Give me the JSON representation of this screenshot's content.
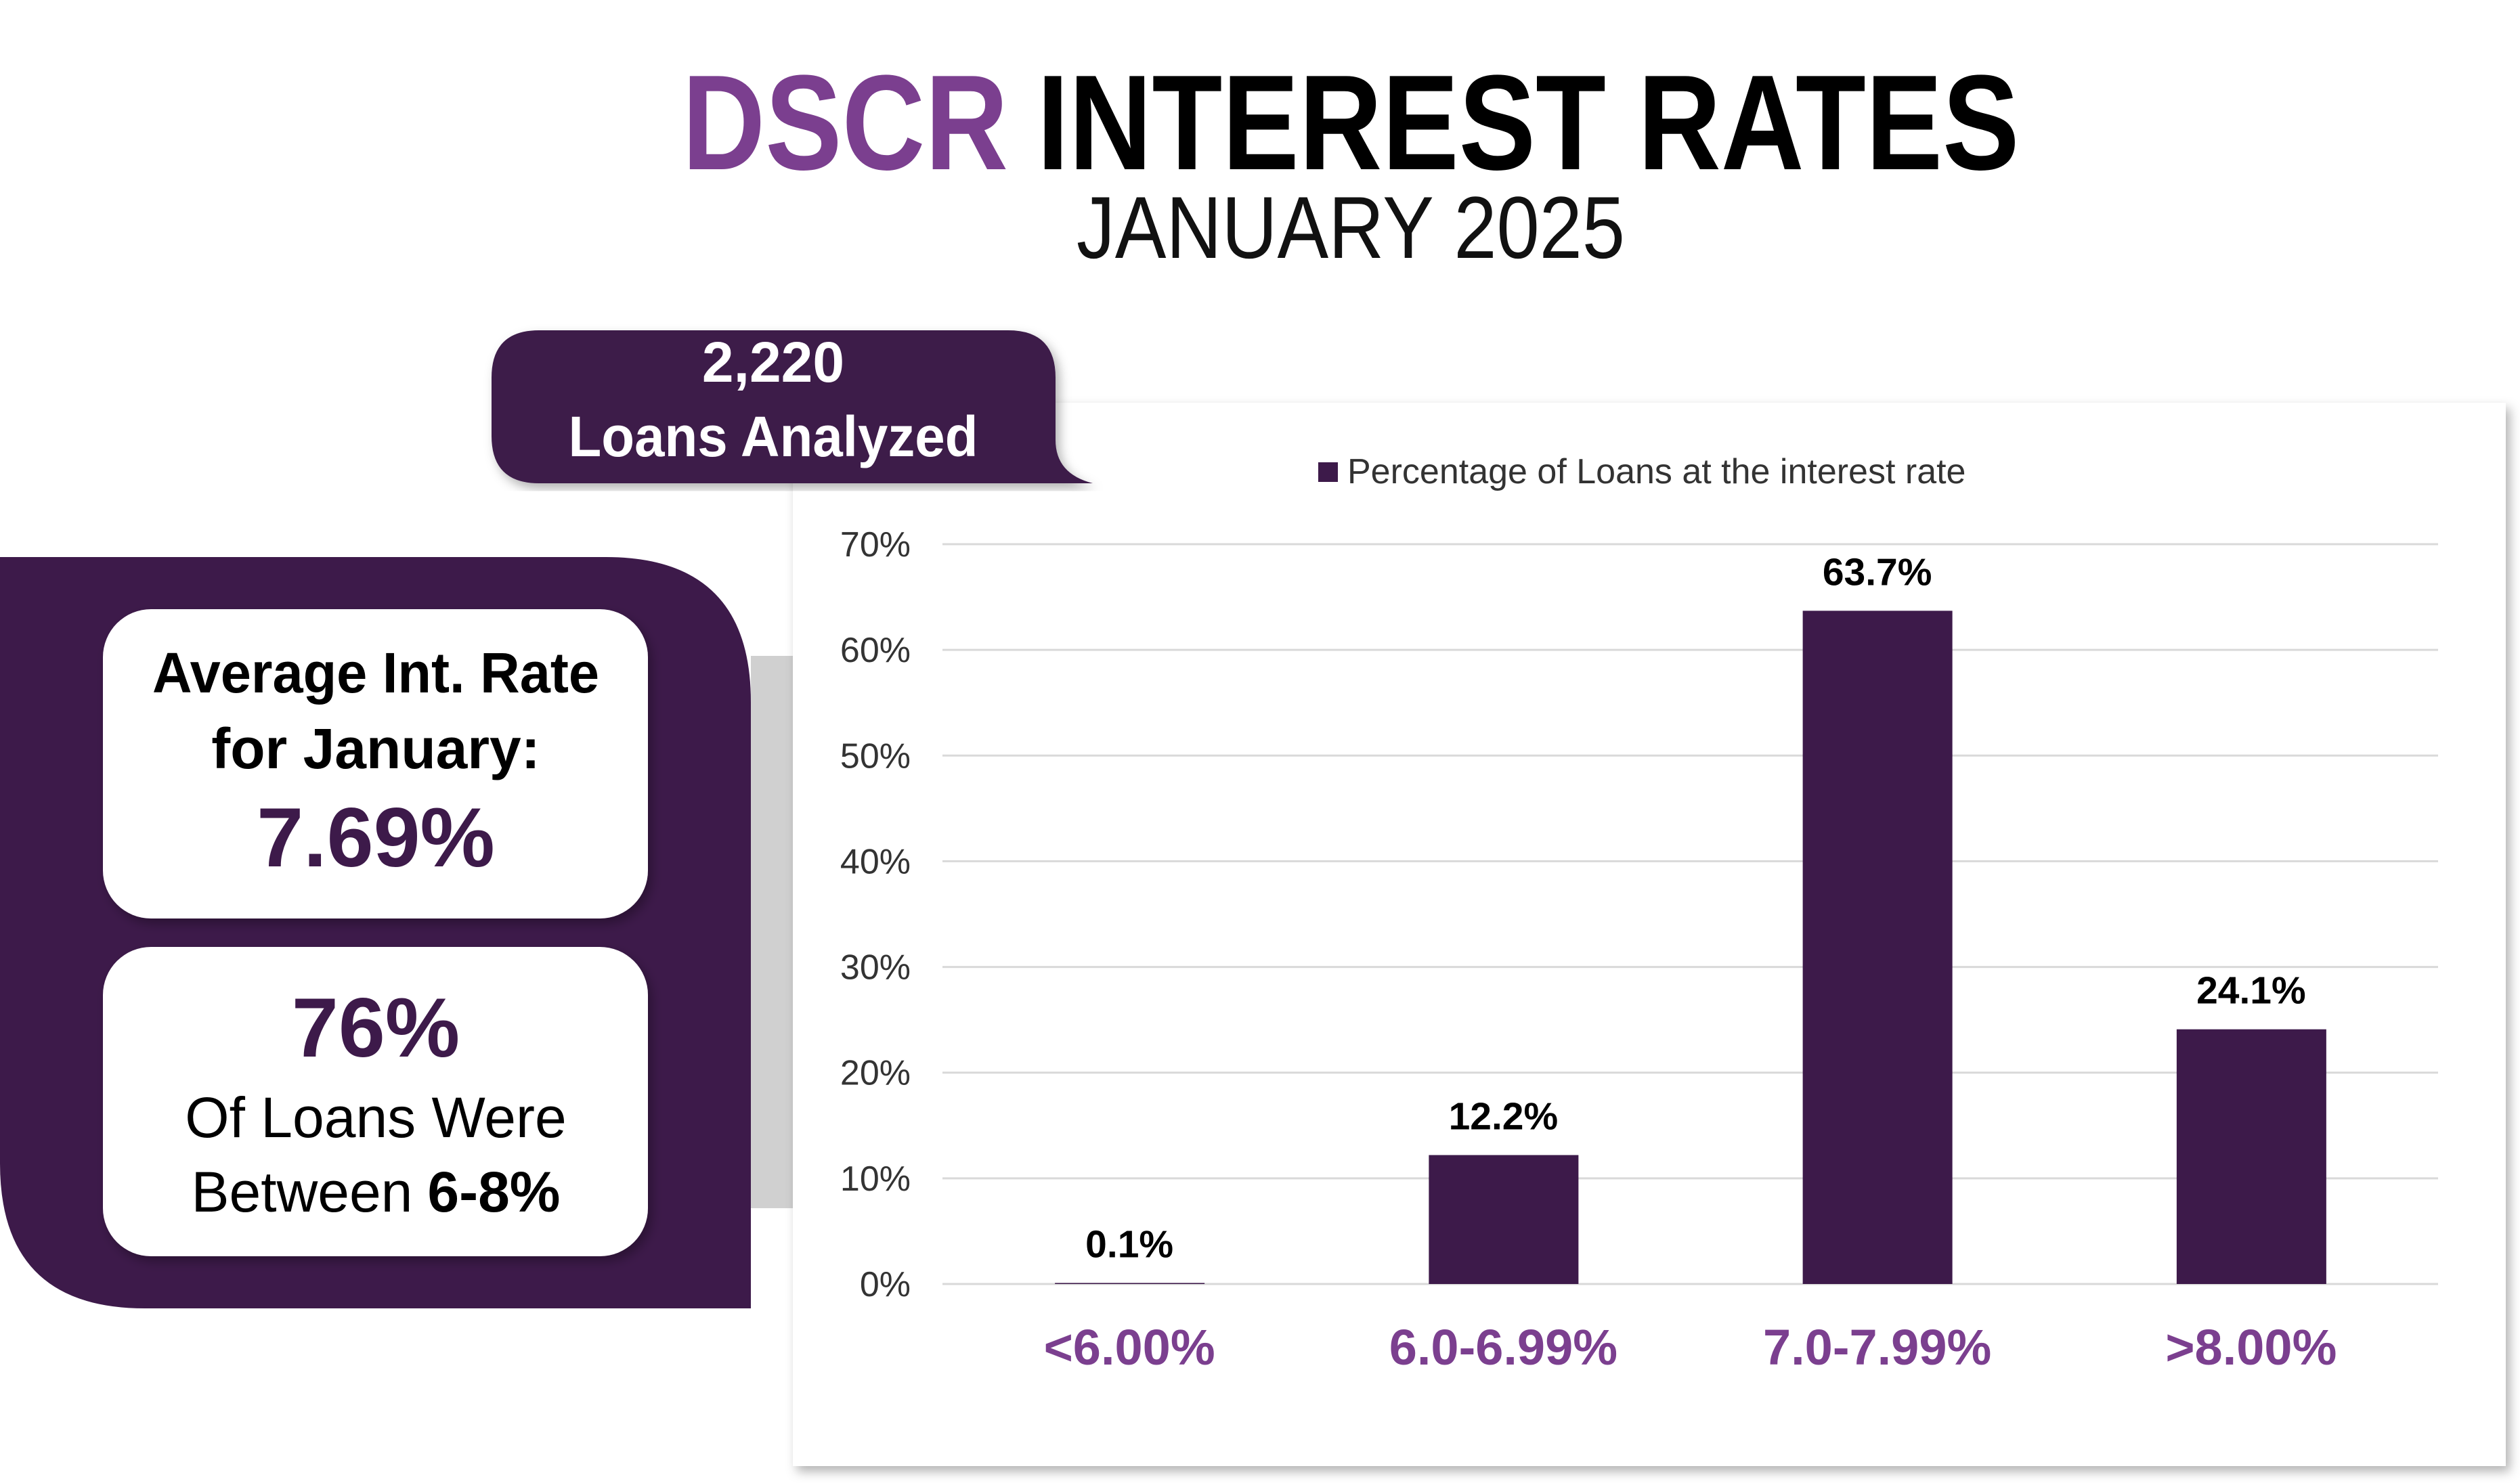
{
  "header": {
    "title_accent": "DSCR",
    "title_main": "INTEREST RATES",
    "subtitle": "JANUARY 2025"
  },
  "badge": {
    "count": "2,220",
    "label": "Loans Analyzed"
  },
  "summary": {
    "average_label_1": "Average Int. Rate",
    "average_label_2": "for January:",
    "average_value": "7.69%",
    "share_value": "76%",
    "share_label_1": "Of Loans Were",
    "share_label_2": "Between",
    "share_range": "6-8%"
  },
  "chart_data": {
    "type": "bar",
    "categories": [
      "<6.00%",
      "6.0-6.99%",
      "7.0-7.99%",
      ">8.00%"
    ],
    "series": [
      {
        "name": "Percentage of Loans at the interest rate",
        "color": "#3d1a4a",
        "values": [
          0.1,
          12.2,
          63.7,
          24.1
        ],
        "value_labels": [
          "0.1%",
          "12.2%",
          "63.7%",
          "24.1%"
        ]
      }
    ],
    "ylim": [
      0,
      70
    ],
    "yticks": [
      {
        "value": 0,
        "label": "0%"
      },
      {
        "value": 10,
        "label": "10%"
      },
      {
        "value": 20,
        "label": "20%"
      },
      {
        "value": 30,
        "label": "30%"
      },
      {
        "value": 40,
        "label": "40%"
      },
      {
        "value": 50,
        "label": "50%"
      },
      {
        "value": 60,
        "label": "60%"
      },
      {
        "value": 70,
        "label": "70%"
      }
    ],
    "grid": true,
    "legend": "top",
    "category_color": "#7b3f8f"
  }
}
